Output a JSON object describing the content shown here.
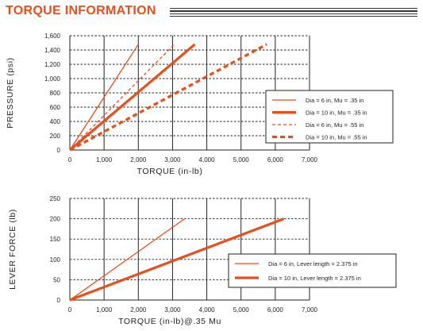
{
  "title": "TORQUE INFORMATION",
  "colors": {
    "accent": "#ea4e1c",
    "grid": "#222222"
  },
  "chart_data": [
    {
      "type": "line",
      "xlabel": "TORQUE (in-lb)",
      "ylabel": "PRESSURE (psi)",
      "xlim": [
        0,
        7000
      ],
      "ylim": [
        0,
        1600
      ],
      "x_ticks": [
        "0",
        "1,000",
        "2,000",
        "3,000",
        "4,000",
        "5,000",
        "6,000",
        "7,000"
      ],
      "y_ticks": [
        "0",
        "200",
        "400",
        "600",
        "800",
        "1,000",
        "1,200",
        "1,400",
        "1,600"
      ],
      "grid": "dashed horizontal, solid vertical",
      "legend_position": "right",
      "series": [
        {
          "name": "Dia = 6 in, Mu = .35 in",
          "style": "solid thin",
          "points": [
            [
              0,
              0
            ],
            [
              2000,
              1480
            ]
          ]
        },
        {
          "name": "Dia = 10 in, Mu = .35 in",
          "style": "solid thick",
          "points": [
            [
              0,
              0
            ],
            [
              3650,
              1480
            ]
          ]
        },
        {
          "name": "Dia = 6 in, Mu = .55 in",
          "style": "dashed thin",
          "points": [
            [
              0,
              0
            ],
            [
              3050,
              1480
            ]
          ]
        },
        {
          "name": "Dia = 10 in, Mu = .55 in",
          "style": "dashed thick",
          "points": [
            [
              0,
              0
            ],
            [
              5750,
              1480
            ]
          ]
        }
      ]
    },
    {
      "type": "line",
      "xlabel": "TORQUE (in-lb)@.35 Mu",
      "ylabel": "LEVER FORCE (lb)",
      "xlim": [
        0,
        7000
      ],
      "ylim": [
        0,
        250
      ],
      "x_ticks": [
        "0",
        "1,000",
        "2,000",
        "3,000",
        "4,000",
        "5,000",
        "6,000",
        "7,000"
      ],
      "y_ticks": [
        "0",
        "50",
        "100",
        "150",
        "200",
        "250"
      ],
      "grid": "dashed horizontal, solid vertical",
      "legend_position": "right",
      "series": [
        {
          "name": "Dia = 6 in, Lever length = 2.375 in",
          "style": "solid thin",
          "points": [
            [
              0,
              0
            ],
            [
              3350,
              200
            ]
          ]
        },
        {
          "name": "Dia = 10 in, Lever length = 2.375 in",
          "style": "solid thick",
          "points": [
            [
              0,
              0
            ],
            [
              6250,
              200
            ]
          ]
        }
      ]
    }
  ]
}
